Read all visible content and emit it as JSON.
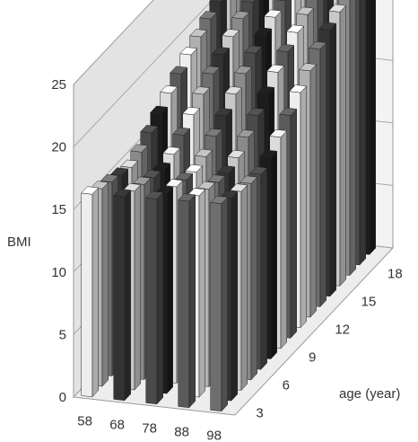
{
  "chart_data": {
    "type": "bar",
    "subtype": "3d-bar",
    "title": "",
    "zlabel": "BMI",
    "ylabel": "age (year)",
    "xlabel": "",
    "zlim": [
      0,
      25
    ],
    "z_ticks": [
      "0",
      "5",
      "10",
      "15",
      "20",
      "25"
    ],
    "x_categories": [
      "58",
      "68",
      "78",
      "88",
      "98"
    ],
    "y_categories": [
      "3",
      "6",
      "9",
      "12",
      "15",
      "18"
    ],
    "grid": true,
    "series_shades": [
      "#eeeeee",
      "#b0b0b0",
      "#6e6e6e",
      "#333333",
      "#c8c8c8",
      "#8a8a8a",
      "#4a4a4a",
      "#1c1c1c",
      "#dcdcdc",
      "#5a5a5a"
    ],
    "values": [
      [
        16.2,
        15.8,
        15.5,
        15.2,
        15.0,
        15.4,
        16.1,
        16.8,
        17.6,
        18.3,
        19.0,
        19.6,
        20.2,
        20.7,
        21.1,
        21.4
      ],
      [
        16.3,
        15.9,
        15.6,
        15.3,
        15.1,
        15.5,
        16.2,
        17.0,
        17.8,
        18.6,
        19.3,
        19.9,
        20.5,
        21.0,
        21.4,
        21.7
      ],
      [
        16.4,
        16.0,
        15.7,
        15.4,
        15.2,
        15.6,
        16.4,
        17.2,
        18.1,
        18.9,
        19.7,
        20.3,
        20.9,
        21.4,
        21.8,
        22.1
      ],
      [
        16.5,
        16.1,
        15.8,
        15.5,
        15.4,
        15.8,
        16.6,
        17.5,
        18.4,
        19.3,
        20.1,
        20.8,
        21.4,
        21.9,
        22.3,
        22.6
      ],
      [
        16.6,
        16.2,
        15.9,
        15.7,
        15.6,
        16.1,
        16.9,
        17.8,
        18.8,
        19.7,
        20.6,
        21.3,
        21.9,
        22.4,
        22.8,
        23.1
      ]
    ]
  }
}
